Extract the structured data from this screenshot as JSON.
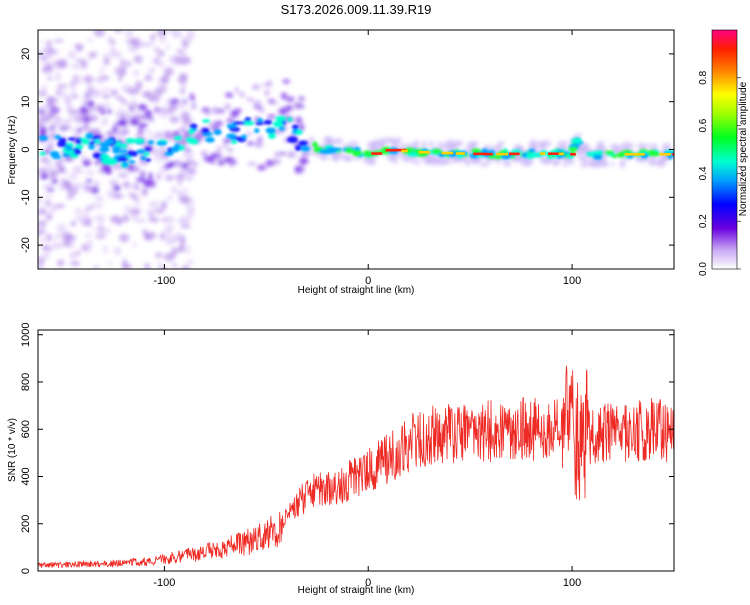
{
  "title": "S173.2026.009.11.39.R19",
  "charts": [
    {
      "type": "heatmap",
      "xlabel": "Height of straight line (km)",
      "ylabel": "Frequency (Hz)",
      "xlim": [
        -162,
        150
      ],
      "ylim": [
        -25,
        25
      ],
      "xticks": [
        -100,
        0,
        100
      ],
      "xtick_labels": [
        "-100",
        "0",
        "100"
      ],
      "yticks": [
        -20,
        -10,
        0,
        10,
        20
      ],
      "ytick_labels": [
        "-20",
        "-10",
        "0",
        "10",
        "20"
      ],
      "ridge": {
        "x": [
          -162,
          -150,
          -140,
          -130,
          -120,
          -110,
          -100,
          -90,
          -80,
          -70,
          -60,
          -50,
          -40,
          -35,
          -30,
          -20,
          -10,
          0,
          10,
          20,
          40,
          60,
          80,
          100,
          102,
          104,
          106,
          120,
          150
        ],
        "freq": [
          1,
          0,
          1,
          0,
          -1,
          0,
          1,
          2,
          4,
          3,
          4,
          5,
          6,
          3,
          1,
          0,
          0,
          -1,
          0,
          -0.5,
          -0.8,
          -1,
          -0.8,
          -1,
          2,
          1,
          -1,
          -1,
          -1
        ]
      },
      "colorbar": {
        "label": "Normalized spectral amplitude",
        "ticks": [
          0.0,
          0.2,
          0.4,
          0.6,
          0.8
        ],
        "tick_labels": [
          "0.0",
          "0.2",
          "0.4",
          "0.6",
          "0.8"
        ],
        "range": [
          0,
          1
        ]
      }
    },
    {
      "type": "line",
      "xlabel": "Height of straight line (km)",
      "ylabel": "SNR (10 * v/v)",
      "xlim": [
        -162,
        150
      ],
      "ylim": [
        0,
        1020
      ],
      "xticks": [
        -100,
        0,
        100
      ],
      "xtick_labels": [
        "-100",
        "0",
        "100"
      ],
      "yticks": [
        0,
        200,
        400,
        600,
        800,
        1000
      ],
      "ytick_labels": [
        "0",
        "200",
        "400",
        "600",
        "800",
        "1000"
      ],
      "color": "#ee2a24",
      "series": [
        {
          "name": "SNR",
          "x": [
            -162,
            -150,
            -140,
            -130,
            -120,
            -110,
            -100,
            -90,
            -80,
            -70,
            -60,
            -50,
            -45,
            -40,
            -35,
            -30,
            -25,
            -20,
            -15,
            -10,
            -5,
            0,
            5,
            10,
            15,
            20,
            25,
            30,
            40,
            50,
            60,
            70,
            80,
            90,
            95,
            100,
            103,
            105,
            107,
            110,
            120,
            130,
            140,
            150
          ],
          "y": [
            25,
            25,
            30,
            30,
            35,
            40,
            50,
            65,
            80,
            100,
            120,
            150,
            180,
            220,
            280,
            320,
            350,
            340,
            360,
            380,
            400,
            420,
            450,
            480,
            510,
            540,
            560,
            570,
            580,
            580,
            590,
            600,
            600,
            600,
            610,
            620,
            560,
            500,
            580,
            580,
            580,
            590,
            600,
            580
          ]
        }
      ]
    }
  ]
}
